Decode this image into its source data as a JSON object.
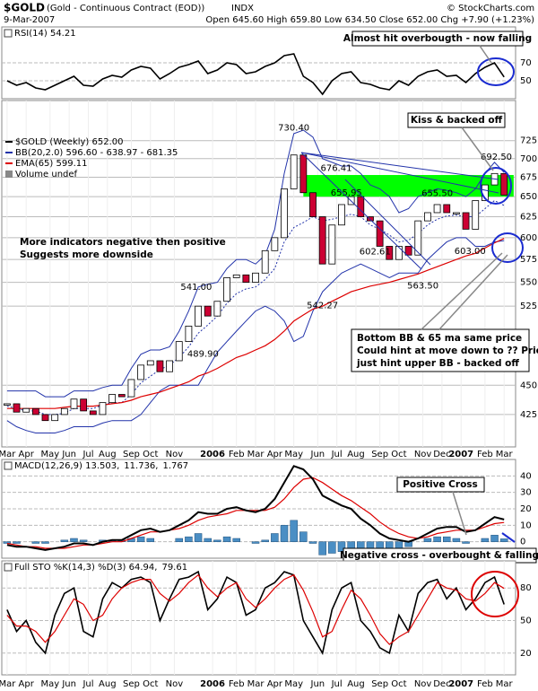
{
  "header": {
    "symbol": "$GOLD",
    "name": "(Gold - Continuous Contract (EOD))",
    "exchange": "INDX",
    "date": "9-Mar-2007",
    "quote": "Open 645.60  High 659.80  Low 634.50  Close 652.00  Chg +7.90 (+1.23%)",
    "copyright": "© StockCharts.com"
  },
  "chart_data": [
    {
      "type": "line",
      "x": [
        0,
        2,
        4,
        6,
        8,
        10,
        12,
        14,
        16,
        18,
        20,
        22,
        24,
        26,
        28,
        30,
        32,
        34,
        36,
        38,
        40,
        42,
        44,
        46,
        48,
        50,
        52,
        54,
        56,
        58,
        60,
        62,
        64,
        66,
        68,
        70,
        72,
        74,
        76,
        78,
        80,
        82,
        84,
        86,
        88,
        90,
        92,
        94,
        96,
        98,
        100,
        102,
        104
      ],
      "xlim": [
        -1.1,
        106.4
      ],
      "series": [
        {
          "name": "RSI(14) 54.21",
          "color": "#000000",
          "values": [
            50,
            45,
            48,
            42,
            40,
            45,
            50,
            55,
            45,
            44,
            52,
            56,
            54,
            62,
            66,
            64,
            52,
            58,
            65,
            68,
            72,
            58,
            62,
            70,
            68,
            58,
            60,
            66,
            70,
            78,
            80,
            55,
            48,
            35,
            50,
            58,
            60,
            48,
            46,
            42,
            40,
            50,
            45,
            55,
            60,
            62,
            55,
            56,
            48,
            58,
            65,
            70,
            54.21
          ]
        }
      ],
      "ylim": [
        30,
        110
      ],
      "yticks": [
        70,
        50
      ],
      "annotations": [
        "Almost hit overbougth - now falling"
      ]
    },
    {
      "type": "candlestick",
      "x": [
        0,
        2,
        4,
        6,
        8,
        10,
        12,
        14,
        16,
        18,
        20,
        22,
        24,
        26,
        28,
        30,
        32,
        34,
        36,
        38,
        40,
        42,
        44,
        46,
        48,
        50,
        52,
        54,
        56,
        58,
        60,
        62,
        64,
        66,
        68,
        70,
        72,
        74,
        76,
        78,
        80,
        82,
        84,
        86,
        88,
        90,
        92,
        94,
        96,
        98,
        100,
        102,
        104
      ],
      "xlim": [
        -1.1,
        106.4
      ],
      "series": [
        {
          "name": "$GOLD (Weekly) 652.00",
          "color": "#000000",
          "down_color": "#cc0033",
          "values": [
            434,
            427,
            430,
            425,
            420,
            425,
            430,
            438,
            428,
            425,
            435,
            442,
            440,
            455,
            468,
            472,
            462,
            472,
            490,
            505,
            525,
            515,
            530,
            555,
            558,
            550,
            560,
            585,
            600,
            660,
            705,
            655,
            625,
            570,
            615,
            640,
            650,
            625,
            620,
            590,
            575,
            590,
            580,
            620,
            630,
            640,
            630,
            630,
            610,
            645,
            665,
            680,
            652
          ]
        },
        {
          "name": "BB(20,2.0) 596.60 - 638.97 - 681.35",
          "color": "#2233aa",
          "upper": [
            445,
            445,
            445,
            445,
            440,
            440,
            440,
            445,
            445,
            445,
            448,
            450,
            450,
            465,
            478,
            482,
            482,
            485,
            500,
            520,
            545,
            548,
            550,
            565,
            575,
            575,
            570,
            580,
            610,
            680,
            735,
            740,
            730,
            700,
            695,
            690,
            690,
            680,
            665,
            660,
            650,
            630,
            635,
            650,
            655,
            660,
            658,
            655,
            650,
            660,
            680,
            695,
            681.35
          ],
          "middle": [
            432,
            430,
            428,
            428,
            425,
            425,
            426,
            430,
            430,
            430,
            433,
            435,
            435,
            442,
            452,
            458,
            464,
            468,
            475,
            485,
            498,
            506,
            515,
            528,
            538,
            543,
            545,
            553,
            565,
            595,
            612,
            618,
            625,
            620,
            622,
            625,
            628,
            625,
            615,
            610,
            603,
            595,
            597,
            605,
            615,
            622,
            626,
            627,
            625,
            625,
            635,
            645,
            638.97
          ],
          "lower": [
            420,
            415,
            412,
            410,
            410,
            410,
            412,
            415,
            415,
            415,
            418,
            420,
            420,
            420,
            425,
            435,
            445,
            450,
            450,
            450,
            450,
            465,
            480,
            490,
            500,
            510,
            520,
            525,
            520,
            510,
            490,
            495,
            520,
            540,
            550,
            560,
            565,
            570,
            565,
            560,
            555,
            560,
            560,
            560,
            575,
            585,
            595,
            600,
            600,
            590,
            590,
            595,
            596.6
          ]
        },
        {
          "name": "EMA(65) 599.11",
          "color": "#dd0000",
          "values": [
            430,
            430,
            430,
            430,
            430,
            430,
            431,
            432,
            432,
            432,
            433,
            434,
            435,
            437,
            440,
            442,
            444,
            447,
            450,
            453,
            458,
            461,
            465,
            470,
            475,
            478,
            482,
            486,
            492,
            500,
            510,
            516,
            522,
            525,
            530,
            535,
            540,
            543,
            546,
            548,
            550,
            553,
            556,
            559,
            563,
            567,
            571,
            575,
            579,
            582,
            588,
            594,
            599.11
          ]
        }
      ],
      "legend_extra": "Volume undef",
      "log_scale": true,
      "ylim": [
        399,
        784
      ],
      "yticks": [
        425,
        450,
        525,
        550,
        575,
        600,
        625,
        650,
        675,
        700,
        725
      ],
      "xticks": [
        {
          "value": 0,
          "label": "Mar"
        },
        {
          "value": 4,
          "label": "Apr"
        },
        {
          "value": 9,
          "label": "May"
        },
        {
          "value": 13,
          "label": "Jun"
        },
        {
          "value": 17,
          "label": "Jul"
        },
        {
          "value": 21,
          "label": "Aug"
        },
        {
          "value": 26,
          "label": "Sep"
        },
        {
          "value": 30,
          "label": "Oct"
        },
        {
          "value": 35,
          "label": "Nov"
        },
        {
          "value": 43,
          "label": "2006"
        },
        {
          "value": 48,
          "label": "Feb"
        },
        {
          "value": 52,
          "label": "Mar"
        },
        {
          "value": 56,
          "label": "Apr"
        },
        {
          "value": 60,
          "label": "May"
        },
        {
          "value": 65,
          "label": "Jun"
        },
        {
          "value": 69,
          "label": "Jul"
        },
        {
          "value": 73,
          "label": "Aug"
        },
        {
          "value": 78,
          "label": "Sep"
        },
        {
          "value": 82,
          "label": "Oct"
        },
        {
          "value": 87,
          "label": "Nov"
        },
        {
          "value": 91,
          "label": "Dec"
        },
        {
          "value": 95,
          "label": "2007"
        },
        {
          "value": 100,
          "label": "Feb"
        },
        {
          "value": 104,
          "label": "Mar"
        }
      ],
      "zone": {
        "from": 650,
        "to": 678,
        "x": [
          62,
          106
        ],
        "color": "#00ff00"
      },
      "point_labels": [
        {
          "x": 60,
          "value": 730.4,
          "label": "730.40"
        },
        {
          "x": 70,
          "value": 676.41,
          "label": "676.41"
        },
        {
          "x": 71,
          "value": 655.95,
          "label": "655.95"
        },
        {
          "x": 90,
          "value": 655.5,
          "label": "655.50"
        },
        {
          "x": 102,
          "value": 692.5,
          "label": "692.50"
        },
        {
          "x": 44,
          "value": 541,
          "label": "541.00"
        },
        {
          "x": 41,
          "value": 489.9,
          "label": "489.90"
        },
        {
          "x": 77,
          "value": 602.61,
          "label": "602.61"
        },
        {
          "x": 66,
          "value": 542.27,
          "label": "542.27"
        },
        {
          "x": 87,
          "value": 563.5,
          "label": "563.50"
        },
        {
          "x": 98,
          "value": 603,
          "label": "603.00"
        }
      ],
      "annotations": [
        "Kiss & backed off",
        "More indicators negative then positive",
        "Suggests more downside",
        "Bottom BB & 65 ma same price",
        "Could hint at move down to ?? Price",
        "just hint upper BB - backed off"
      ]
    },
    {
      "type": "macd",
      "x": [
        0,
        2,
        4,
        6,
        8,
        10,
        12,
        14,
        16,
        18,
        20,
        22,
        24,
        26,
        28,
        30,
        32,
        34,
        36,
        38,
        40,
        42,
        44,
        46,
        48,
        50,
        52,
        54,
        56,
        58,
        60,
        62,
        64,
        66,
        68,
        70,
        72,
        74,
        76,
        78,
        80,
        82,
        84,
        86,
        88,
        90,
        92,
        94,
        96,
        98,
        100,
        102,
        104
      ],
      "xlim": [
        -1.1,
        106.4
      ],
      "series": [
        {
          "name": "MACD(12,26,9) 13.503,",
          "color": "#000000",
          "values": [
            -2,
            -3,
            -3,
            -4,
            -5,
            -4,
            -3,
            -1,
            -1,
            -2,
            0,
            1,
            1,
            4,
            7,
            8,
            6,
            7,
            10,
            13,
            18,
            17,
            17,
            20,
            21,
            19,
            18,
            20,
            26,
            36,
            46,
            44,
            38,
            28,
            25,
            22,
            20,
            14,
            10,
            5,
            2,
            1,
            0,
            2,
            5,
            8,
            9,
            9,
            6,
            7,
            11,
            15,
            13.503
          ]
        },
        {
          "name": "11.736,",
          "color": "#dd0000",
          "values": [
            -1,
            -2,
            -3,
            -3,
            -4,
            -4,
            -4,
            -3,
            -2,
            -2,
            -1,
            0,
            0,
            2,
            4,
            6,
            6,
            7,
            8,
            10,
            13,
            15,
            16,
            17,
            19,
            19,
            19,
            19,
            21,
            26,
            33,
            38,
            39,
            36,
            32,
            28,
            25,
            21,
            17,
            12,
            8,
            5,
            3,
            2,
            3,
            5,
            6,
            7,
            7,
            7,
            9,
            11,
            11.736
          ]
        },
        {
          "name": "1.767",
          "color": "#4a8ec4",
          "values": [
            -1,
            -1,
            0,
            -1,
            -1,
            0,
            1,
            2,
            1,
            0,
            1,
            1,
            1,
            2,
            3,
            2,
            0,
            0,
            2,
            3,
            5,
            2,
            1,
            3,
            2,
            0,
            -1,
            1,
            5,
            10,
            13,
            6,
            -1,
            -8,
            -7,
            -6,
            -5,
            -7,
            -7,
            -7,
            -6,
            -4,
            -3,
            0,
            2,
            3,
            3,
            2,
            -1,
            0,
            2,
            4,
            1.767
          ]
        }
      ],
      "ylim": [
        -10,
        50
      ],
      "yticks": [
        40,
        30,
        20,
        10,
        0
      ],
      "annotations": [
        "Positive Cross",
        "Negative cross - overbought & falling"
      ]
    },
    {
      "type": "line",
      "x": [
        0,
        2,
        4,
        6,
        8,
        10,
        12,
        14,
        16,
        18,
        20,
        22,
        24,
        26,
        28,
        30,
        32,
        34,
        36,
        38,
        40,
        42,
        44,
        46,
        48,
        50,
        52,
        54,
        56,
        58,
        60,
        62,
        64,
        66,
        68,
        70,
        72,
        74,
        76,
        78,
        80,
        82,
        84,
        86,
        88,
        90,
        92,
        94,
        96,
        98,
        100,
        102,
        104
      ],
      "xlim": [
        -1.1,
        106.4
      ],
      "series": [
        {
          "name": "Full STO %K(14,3) %D(3) 64.94,",
          "color": "#000000",
          "values": [
            60,
            40,
            50,
            30,
            20,
            55,
            75,
            80,
            40,
            35,
            70,
            85,
            80,
            88,
            90,
            85,
            50,
            70,
            88,
            90,
            95,
            60,
            70,
            90,
            85,
            55,
            60,
            80,
            85,
            95,
            92,
            50,
            35,
            20,
            60,
            80,
            85,
            50,
            40,
            25,
            20,
            55,
            40,
            75,
            85,
            88,
            70,
            80,
            60,
            70,
            85,
            90,
            64.94
          ]
        },
        {
          "name": "79.61",
          "color": "#dd0000",
          "values": [
            55,
            45,
            45,
            40,
            30,
            40,
            55,
            70,
            65,
            50,
            55,
            70,
            80,
            85,
            88,
            88,
            75,
            68,
            75,
            85,
            92,
            80,
            72,
            80,
            85,
            70,
            62,
            70,
            80,
            88,
            92,
            78,
            58,
            35,
            40,
            60,
            78,
            70,
            55,
            38,
            28,
            35,
            40,
            55,
            70,
            85,
            80,
            78,
            70,
            68,
            75,
            85,
            79.61
          ]
        }
      ],
      "ylim": [
        0,
        105
      ],
      "yticks": [
        80,
        50,
        20
      ],
      "xticks": [
        {
          "value": 0,
          "label": "Mar"
        },
        {
          "value": 4,
          "label": "Apr"
        },
        {
          "value": 9,
          "label": "May"
        },
        {
          "value": 13,
          "label": "Jun"
        },
        {
          "value": 17,
          "label": "Jul"
        },
        {
          "value": 21,
          "label": "Aug"
        },
        {
          "value": 26,
          "label": "Sep"
        },
        {
          "value": 30,
          "label": "Oct"
        },
        {
          "value": 35,
          "label": "Nov"
        },
        {
          "value": 43,
          "label": "2006"
        },
        {
          "value": 48,
          "label": "Feb"
        },
        {
          "value": 52,
          "label": "Mar"
        },
        {
          "value": 56,
          "label": "Apr"
        },
        {
          "value": 60,
          "label": "May"
        },
        {
          "value": 65,
          "label": "Jun"
        },
        {
          "value": 69,
          "label": "Jul"
        },
        {
          "value": 73,
          "label": "Aug"
        },
        {
          "value": 78,
          "label": "Sep"
        },
        {
          "value": 82,
          "label": "Oct"
        },
        {
          "value": 87,
          "label": "Nov"
        },
        {
          "value": 91,
          "label": "Dec"
        },
        {
          "value": 95,
          "label": "2007"
        },
        {
          "value": 100,
          "label": "Feb"
        },
        {
          "value": 104,
          "label": "Mar"
        }
      ]
    }
  ]
}
